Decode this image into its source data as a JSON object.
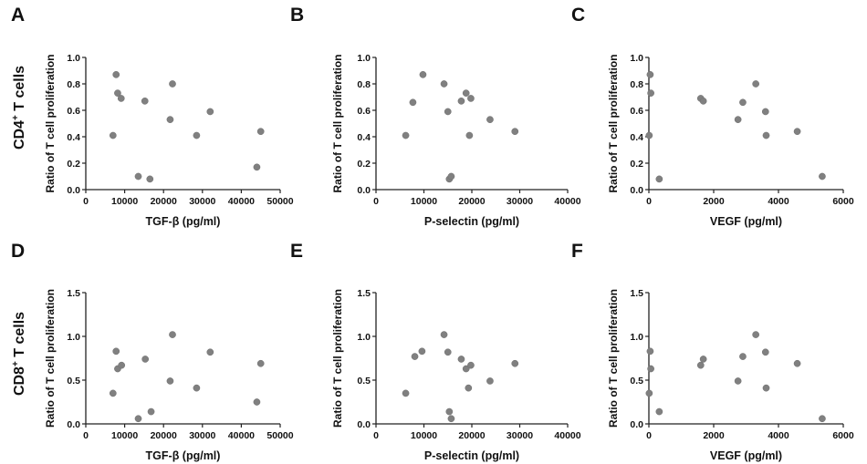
{
  "row_labels": [
    {
      "prefix": "CD4",
      "sup": "+",
      "suffix": " T cells"
    },
    {
      "prefix": "CD8",
      "sup": "+",
      "suffix": " T cells"
    }
  ],
  "point_color": "#808080",
  "axis_color": "#222222",
  "chart_data": [
    {
      "panel": "A",
      "type": "scatter",
      "xlabel": "TGF-β (pg/ml)",
      "ylabel": "Ratio of T cell proliferation",
      "xlim": [
        0,
        50000
      ],
      "ylim": [
        0,
        1.0
      ],
      "xticks": [
        0,
        10000,
        20000,
        30000,
        40000,
        50000
      ],
      "yticks": [
        0.0,
        0.2,
        0.4,
        0.6,
        0.8,
        1.0
      ],
      "xtick_labels": [
        "0",
        "10000",
        "20000",
        "30000",
        "40000",
        "50000"
      ],
      "ytick_labels": [
        "0.0",
        "0.2",
        "0.4",
        "0.6",
        "0.8",
        "1.0"
      ],
      "x": [
        7000,
        7800,
        8200,
        9100,
        13500,
        15200,
        16500,
        21700,
        22300,
        28500,
        32000,
        44000,
        45000
      ],
      "y": [
        0.41,
        0.87,
        0.73,
        0.69,
        0.1,
        0.67,
        0.08,
        0.53,
        0.8,
        0.41,
        0.59,
        0.17,
        0.44
      ]
    },
    {
      "panel": "B",
      "type": "scatter",
      "xlabel": "P-selectin (pg/ml)",
      "ylabel": "Ratio of T cell proliferation",
      "xlim": [
        0,
        40000
      ],
      "ylim": [
        0,
        1.0
      ],
      "xticks": [
        0,
        10000,
        20000,
        30000,
        40000
      ],
      "yticks": [
        0.0,
        0.2,
        0.4,
        0.6,
        0.8,
        1.0
      ],
      "xtick_labels": [
        "0",
        "10000",
        "20000",
        "30000",
        "40000"
      ],
      "ytick_labels": [
        "0.0",
        "0.2",
        "0.4",
        "0.6",
        "0.8",
        "1.0"
      ],
      "x": [
        6200,
        7700,
        9800,
        14200,
        15000,
        15300,
        15700,
        17800,
        18800,
        19500,
        19800,
        23800,
        29000
      ],
      "y": [
        0.41,
        0.66,
        0.87,
        0.8,
        0.59,
        0.08,
        0.1,
        0.67,
        0.73,
        0.41,
        0.69,
        0.53,
        0.44
      ]
    },
    {
      "panel": "C",
      "type": "scatter",
      "xlabel": "VEGF (pg/ml)",
      "ylabel": "Ratio of T cell proliferation",
      "xlim": [
        0,
        6000
      ],
      "ylim": [
        0,
        1.0
      ],
      "xticks": [
        0,
        2000,
        4000,
        6000
      ],
      "yticks": [
        0.0,
        0.2,
        0.4,
        0.6,
        0.8,
        1.0
      ],
      "xtick_labels": [
        "0",
        "2000",
        "4000",
        "6000"
      ],
      "ytick_labels": [
        "0.0",
        "0.2",
        "0.4",
        "0.6",
        "0.8",
        "1.0"
      ],
      "x": [
        10,
        40,
        60,
        320,
        1600,
        1680,
        2750,
        2900,
        3300,
        3600,
        3620,
        4580,
        5350
      ],
      "y": [
        0.41,
        0.87,
        0.73,
        0.08,
        0.69,
        0.67,
        0.53,
        0.66,
        0.8,
        0.59,
        0.41,
        0.44,
        0.1
      ]
    },
    {
      "panel": "D",
      "type": "scatter",
      "xlabel": "TGF-β (pg/ml)",
      "ylabel": "Ratio of T cell proliferation",
      "xlim": [
        0,
        50000
      ],
      "ylim": [
        0,
        1.5
      ],
      "xticks": [
        0,
        10000,
        20000,
        30000,
        40000,
        50000
      ],
      "yticks": [
        0.0,
        0.5,
        1.0,
        1.5
      ],
      "xtick_labels": [
        "0",
        "10000",
        "20000",
        "30000",
        "40000",
        "50000"
      ],
      "ytick_labels": [
        "0.0",
        "0.5",
        "1.0",
        "1.5"
      ],
      "x": [
        7000,
        7800,
        8200,
        9200,
        13500,
        15300,
        16800,
        21700,
        22300,
        28500,
        32000,
        44000,
        45000
      ],
      "y": [
        0.35,
        0.83,
        0.63,
        0.67,
        0.06,
        0.74,
        0.14,
        0.49,
        1.02,
        0.41,
        0.82,
        0.25,
        0.69
      ]
    },
    {
      "panel": "E",
      "type": "scatter",
      "xlabel": "P-selectin (pg/ml)",
      "ylabel": "Ratio of T cell proliferation",
      "xlim": [
        0,
        40000
      ],
      "ylim": [
        0,
        1.5
      ],
      "xticks": [
        0,
        10000,
        20000,
        30000,
        40000
      ],
      "yticks": [
        0.0,
        0.5,
        1.0,
        1.5
      ],
      "xtick_labels": [
        "0",
        "10000",
        "20000",
        "30000",
        "40000"
      ],
      "ytick_labels": [
        "0.0",
        "0.5",
        "1.0",
        "1.5"
      ],
      "x": [
        6200,
        8100,
        9600,
        14200,
        15000,
        15300,
        15700,
        17800,
        18800,
        19300,
        19800,
        23800,
        29000
      ],
      "y": [
        0.35,
        0.77,
        0.83,
        1.02,
        0.82,
        0.14,
        0.06,
        0.74,
        0.63,
        0.41,
        0.67,
        0.49,
        0.69
      ]
    },
    {
      "panel": "F",
      "type": "scatter",
      "xlabel": "VEGF (pg/ml)",
      "ylabel": "Ratio of T cell proliferation",
      "xlim": [
        0,
        6000
      ],
      "ylim": [
        0,
        1.5
      ],
      "xticks": [
        0,
        2000,
        4000,
        6000
      ],
      "yticks": [
        0.0,
        0.5,
        1.0,
        1.5
      ],
      "xtick_labels": [
        "0",
        "2000",
        "4000",
        "6000"
      ],
      "ytick_labels": [
        "0.0",
        "0.5",
        "1.0",
        "1.5"
      ],
      "x": [
        10,
        40,
        60,
        320,
        1600,
        1680,
        2750,
        2900,
        3300,
        3600,
        3620,
        4580,
        5350
      ],
      "y": [
        0.35,
        0.83,
        0.63,
        0.14,
        0.67,
        0.74,
        0.49,
        0.77,
        1.02,
        0.82,
        0.41,
        0.69,
        0.06
      ]
    }
  ]
}
